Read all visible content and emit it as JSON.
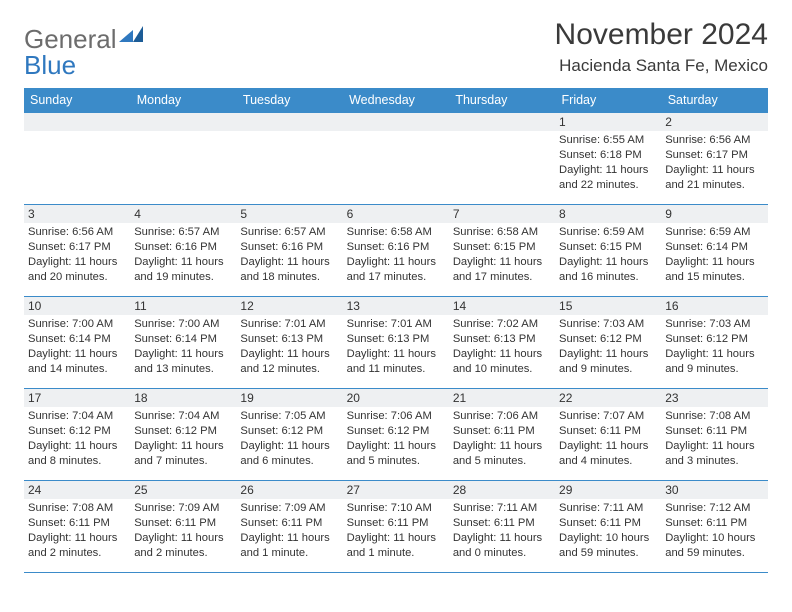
{
  "logo": {
    "word1": "General",
    "word2": "Blue"
  },
  "title": "November 2024",
  "location": "Hacienda Santa Fe, Mexico",
  "colors": {
    "header_bg": "#3b8bc9",
    "header_text": "#ffffff",
    "daynum_bg": "#eef0f2",
    "border": "#3b8bc9",
    "body_text": "#333333",
    "logo_gray": "#6c6c6c",
    "logo_blue": "#2f78bf"
  },
  "weekdays": [
    "Sunday",
    "Monday",
    "Tuesday",
    "Wednesday",
    "Thursday",
    "Friday",
    "Saturday"
  ],
  "weeks": [
    [
      {
        "day": "",
        "sunrise": "",
        "sunset": "",
        "daylight": ""
      },
      {
        "day": "",
        "sunrise": "",
        "sunset": "",
        "daylight": ""
      },
      {
        "day": "",
        "sunrise": "",
        "sunset": "",
        "daylight": ""
      },
      {
        "day": "",
        "sunrise": "",
        "sunset": "",
        "daylight": ""
      },
      {
        "day": "",
        "sunrise": "",
        "sunset": "",
        "daylight": ""
      },
      {
        "day": "1",
        "sunrise": "Sunrise: 6:55 AM",
        "sunset": "Sunset: 6:18 PM",
        "daylight": "Daylight: 11 hours and 22 minutes."
      },
      {
        "day": "2",
        "sunrise": "Sunrise: 6:56 AM",
        "sunset": "Sunset: 6:17 PM",
        "daylight": "Daylight: 11 hours and 21 minutes."
      }
    ],
    [
      {
        "day": "3",
        "sunrise": "Sunrise: 6:56 AM",
        "sunset": "Sunset: 6:17 PM",
        "daylight": "Daylight: 11 hours and 20 minutes."
      },
      {
        "day": "4",
        "sunrise": "Sunrise: 6:57 AM",
        "sunset": "Sunset: 6:16 PM",
        "daylight": "Daylight: 11 hours and 19 minutes."
      },
      {
        "day": "5",
        "sunrise": "Sunrise: 6:57 AM",
        "sunset": "Sunset: 6:16 PM",
        "daylight": "Daylight: 11 hours and 18 minutes."
      },
      {
        "day": "6",
        "sunrise": "Sunrise: 6:58 AM",
        "sunset": "Sunset: 6:16 PM",
        "daylight": "Daylight: 11 hours and 17 minutes."
      },
      {
        "day": "7",
        "sunrise": "Sunrise: 6:58 AM",
        "sunset": "Sunset: 6:15 PM",
        "daylight": "Daylight: 11 hours and 17 minutes."
      },
      {
        "day": "8",
        "sunrise": "Sunrise: 6:59 AM",
        "sunset": "Sunset: 6:15 PM",
        "daylight": "Daylight: 11 hours and 16 minutes."
      },
      {
        "day": "9",
        "sunrise": "Sunrise: 6:59 AM",
        "sunset": "Sunset: 6:14 PM",
        "daylight": "Daylight: 11 hours and 15 minutes."
      }
    ],
    [
      {
        "day": "10",
        "sunrise": "Sunrise: 7:00 AM",
        "sunset": "Sunset: 6:14 PM",
        "daylight": "Daylight: 11 hours and 14 minutes."
      },
      {
        "day": "11",
        "sunrise": "Sunrise: 7:00 AM",
        "sunset": "Sunset: 6:14 PM",
        "daylight": "Daylight: 11 hours and 13 minutes."
      },
      {
        "day": "12",
        "sunrise": "Sunrise: 7:01 AM",
        "sunset": "Sunset: 6:13 PM",
        "daylight": "Daylight: 11 hours and 12 minutes."
      },
      {
        "day": "13",
        "sunrise": "Sunrise: 7:01 AM",
        "sunset": "Sunset: 6:13 PM",
        "daylight": "Daylight: 11 hours and 11 minutes."
      },
      {
        "day": "14",
        "sunrise": "Sunrise: 7:02 AM",
        "sunset": "Sunset: 6:13 PM",
        "daylight": "Daylight: 11 hours and 10 minutes."
      },
      {
        "day": "15",
        "sunrise": "Sunrise: 7:03 AM",
        "sunset": "Sunset: 6:12 PM",
        "daylight": "Daylight: 11 hours and 9 minutes."
      },
      {
        "day": "16",
        "sunrise": "Sunrise: 7:03 AM",
        "sunset": "Sunset: 6:12 PM",
        "daylight": "Daylight: 11 hours and 9 minutes."
      }
    ],
    [
      {
        "day": "17",
        "sunrise": "Sunrise: 7:04 AM",
        "sunset": "Sunset: 6:12 PM",
        "daylight": "Daylight: 11 hours and 8 minutes."
      },
      {
        "day": "18",
        "sunrise": "Sunrise: 7:04 AM",
        "sunset": "Sunset: 6:12 PM",
        "daylight": "Daylight: 11 hours and 7 minutes."
      },
      {
        "day": "19",
        "sunrise": "Sunrise: 7:05 AM",
        "sunset": "Sunset: 6:12 PM",
        "daylight": "Daylight: 11 hours and 6 minutes."
      },
      {
        "day": "20",
        "sunrise": "Sunrise: 7:06 AM",
        "sunset": "Sunset: 6:12 PM",
        "daylight": "Daylight: 11 hours and 5 minutes."
      },
      {
        "day": "21",
        "sunrise": "Sunrise: 7:06 AM",
        "sunset": "Sunset: 6:11 PM",
        "daylight": "Daylight: 11 hours and 5 minutes."
      },
      {
        "day": "22",
        "sunrise": "Sunrise: 7:07 AM",
        "sunset": "Sunset: 6:11 PM",
        "daylight": "Daylight: 11 hours and 4 minutes."
      },
      {
        "day": "23",
        "sunrise": "Sunrise: 7:08 AM",
        "sunset": "Sunset: 6:11 PM",
        "daylight": "Daylight: 11 hours and 3 minutes."
      }
    ],
    [
      {
        "day": "24",
        "sunrise": "Sunrise: 7:08 AM",
        "sunset": "Sunset: 6:11 PM",
        "daylight": "Daylight: 11 hours and 2 minutes."
      },
      {
        "day": "25",
        "sunrise": "Sunrise: 7:09 AM",
        "sunset": "Sunset: 6:11 PM",
        "daylight": "Daylight: 11 hours and 2 minutes."
      },
      {
        "day": "26",
        "sunrise": "Sunrise: 7:09 AM",
        "sunset": "Sunset: 6:11 PM",
        "daylight": "Daylight: 11 hours and 1 minute."
      },
      {
        "day": "27",
        "sunrise": "Sunrise: 7:10 AM",
        "sunset": "Sunset: 6:11 PM",
        "daylight": "Daylight: 11 hours and 1 minute."
      },
      {
        "day": "28",
        "sunrise": "Sunrise: 7:11 AM",
        "sunset": "Sunset: 6:11 PM",
        "daylight": "Daylight: 11 hours and 0 minutes."
      },
      {
        "day": "29",
        "sunrise": "Sunrise: 7:11 AM",
        "sunset": "Sunset: 6:11 PM",
        "daylight": "Daylight: 10 hours and 59 minutes."
      },
      {
        "day": "30",
        "sunrise": "Sunrise: 7:12 AM",
        "sunset": "Sunset: 6:11 PM",
        "daylight": "Daylight: 10 hours and 59 minutes."
      }
    ]
  ]
}
